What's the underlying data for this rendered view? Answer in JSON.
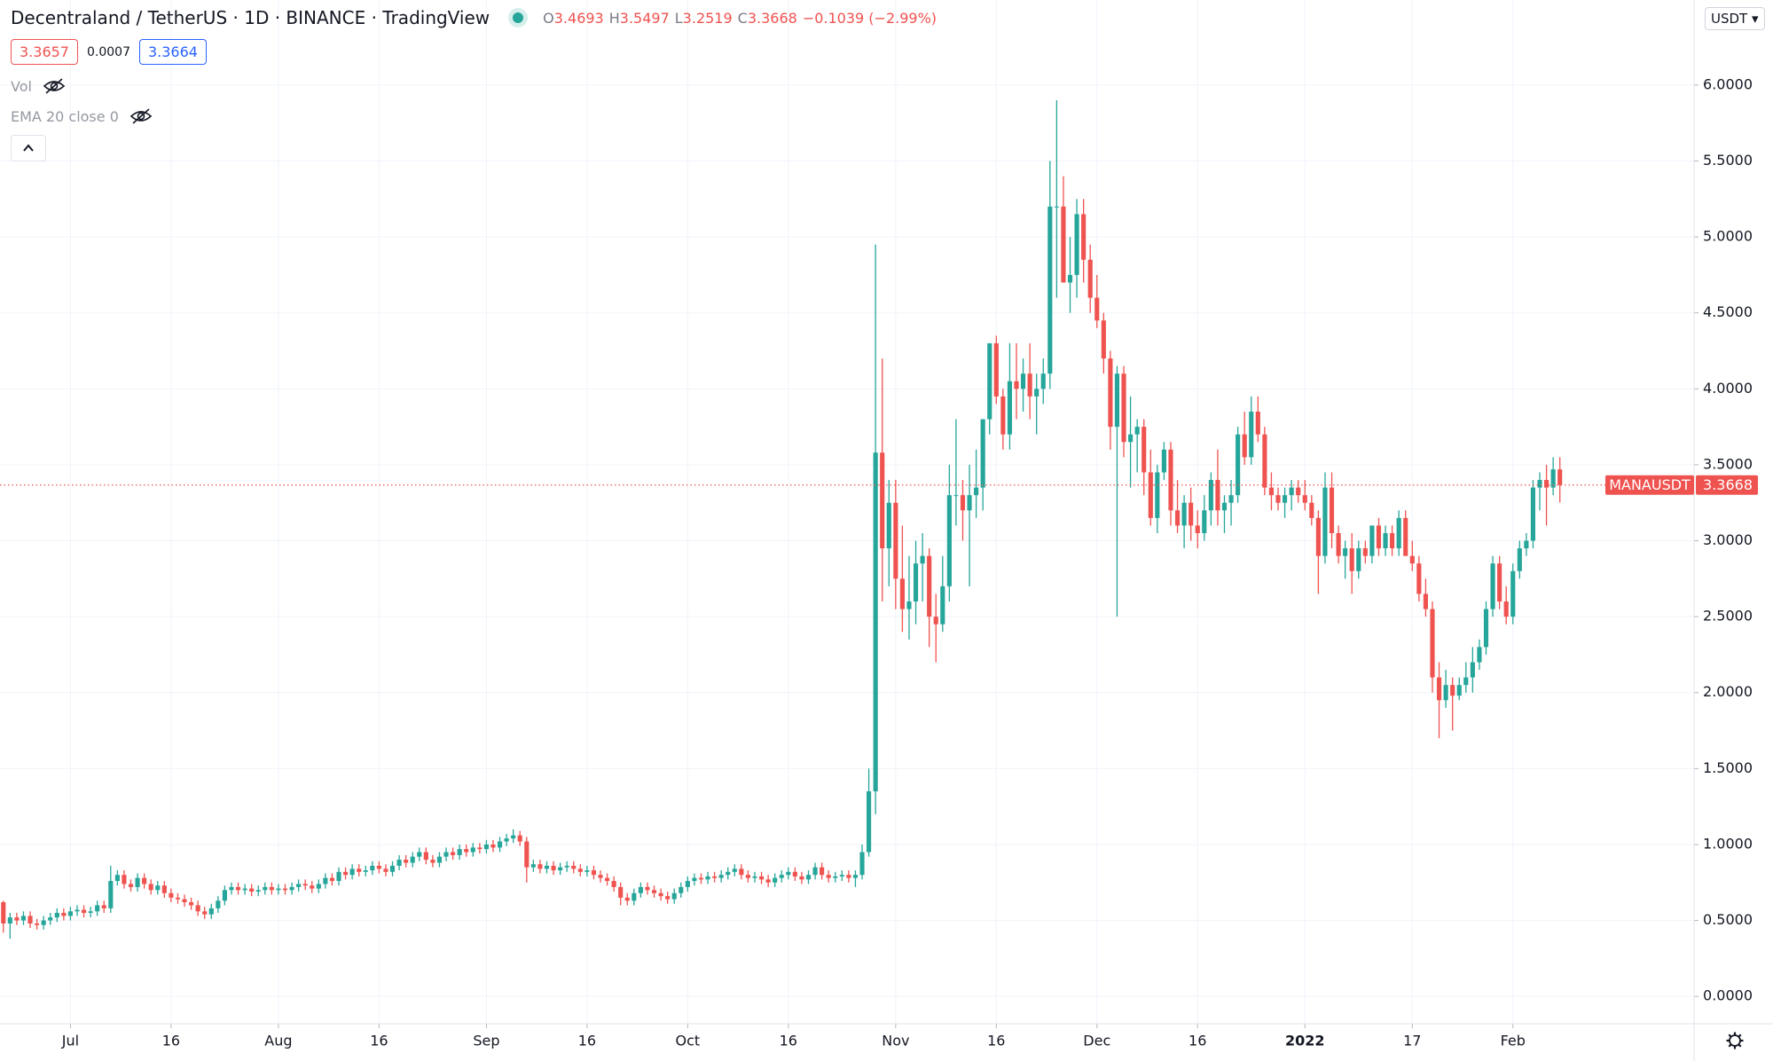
{
  "header": {
    "title": "Decentraland / TetherUS · 1D · BINANCE · TradingView",
    "ohlc": [
      {
        "label": "O",
        "value": "3.4693"
      },
      {
        "label": "H",
        "value": "3.5497"
      },
      {
        "label": "L",
        "value": "3.2519"
      },
      {
        "label": "C",
        "value": "3.3668"
      }
    ],
    "change": "−0.1039 (−2.99%)",
    "sell": "3.3657",
    "spread": "0.0007",
    "buy": "3.3664",
    "indicators": [
      "Vol",
      "EMA 20 close 0"
    ],
    "currency": "USDT"
  },
  "chart_data": {
    "type": "candlestick",
    "up_color": "#26a69a",
    "down_color": "#ef5350",
    "grid": true,
    "xlim": [
      -0.5,
      252
    ],
    "ylim": [
      -0.18,
      6.56
    ],
    "xticks": [
      {
        "value": 10,
        "label": "Jul"
      },
      {
        "value": 25,
        "label": "16"
      },
      {
        "value": 41,
        "label": "Aug"
      },
      {
        "value": 56,
        "label": "16"
      },
      {
        "value": 72,
        "label": "Sep"
      },
      {
        "value": 87,
        "label": "16"
      },
      {
        "value": 102,
        "label": "Oct"
      },
      {
        "value": 117,
        "label": "16"
      },
      {
        "value": 133,
        "label": "Nov"
      },
      {
        "value": 148,
        "label": "16"
      },
      {
        "value": 163,
        "label": "Dec"
      },
      {
        "value": 178,
        "label": "16"
      },
      {
        "value": 194,
        "label": "2022"
      },
      {
        "value": 210,
        "label": "17"
      },
      {
        "value": 225,
        "label": "Feb"
      }
    ],
    "yticks": [
      {
        "value": 0,
        "label": "0.0000"
      },
      {
        "value": 0.5,
        "label": "0.5000"
      },
      {
        "value": 1,
        "label": "1.0000"
      },
      {
        "value": 1.5,
        "label": "1.5000"
      },
      {
        "value": 2,
        "label": "2.0000"
      },
      {
        "value": 2.5,
        "label": "2.5000"
      },
      {
        "value": 3,
        "label": "3.0000"
      },
      {
        "value": 3.5,
        "label": "3.5000"
      },
      {
        "value": 4,
        "label": "4.0000"
      },
      {
        "value": 4.5,
        "label": "4.5000"
      },
      {
        "value": 5,
        "label": "5.0000"
      },
      {
        "value": 5.5,
        "label": "5.5000"
      },
      {
        "value": 6,
        "label": "6.0000"
      }
    ],
    "last_price": {
      "name": "MANAUSDT",
      "value": 3.3668
    },
    "candles": [
      [
        0.62,
        0.63,
        0.42,
        0.48
      ],
      [
        0.48,
        0.55,
        0.38,
        0.52
      ],
      [
        0.52,
        0.55,
        0.47,
        0.5
      ],
      [
        0.5,
        0.56,
        0.47,
        0.53
      ],
      [
        0.53,
        0.56,
        0.45,
        0.48
      ],
      [
        0.48,
        0.51,
        0.44,
        0.47
      ],
      [
        0.47,
        0.53,
        0.44,
        0.5
      ],
      [
        0.5,
        0.55,
        0.47,
        0.52
      ],
      [
        0.52,
        0.58,
        0.49,
        0.55
      ],
      [
        0.55,
        0.58,
        0.5,
        0.53
      ],
      [
        0.53,
        0.59,
        0.5,
        0.56
      ],
      [
        0.56,
        0.6,
        0.53,
        0.57
      ],
      [
        0.57,
        0.6,
        0.52,
        0.55
      ],
      [
        0.55,
        0.59,
        0.52,
        0.56
      ],
      [
        0.56,
        0.63,
        0.53,
        0.6
      ],
      [
        0.6,
        0.63,
        0.55,
        0.58
      ],
      [
        0.58,
        0.86,
        0.55,
        0.76
      ],
      [
        0.76,
        0.83,
        0.73,
        0.8
      ],
      [
        0.8,
        0.83,
        0.71,
        0.74
      ],
      [
        0.74,
        0.77,
        0.69,
        0.72
      ],
      [
        0.72,
        0.81,
        0.69,
        0.78
      ],
      [
        0.78,
        0.81,
        0.71,
        0.74
      ],
      [
        0.74,
        0.77,
        0.67,
        0.7
      ],
      [
        0.7,
        0.76,
        0.67,
        0.73
      ],
      [
        0.73,
        0.76,
        0.65,
        0.68
      ],
      [
        0.68,
        0.71,
        0.62,
        0.65
      ],
      [
        0.65,
        0.68,
        0.61,
        0.64
      ],
      [
        0.64,
        0.67,
        0.59,
        0.62
      ],
      [
        0.62,
        0.65,
        0.57,
        0.6
      ],
      [
        0.6,
        0.63,
        0.53,
        0.56
      ],
      [
        0.56,
        0.59,
        0.51,
        0.54
      ],
      [
        0.54,
        0.61,
        0.51,
        0.58
      ],
      [
        0.58,
        0.66,
        0.55,
        0.63
      ],
      [
        0.63,
        0.73,
        0.6,
        0.7
      ],
      [
        0.7,
        0.75,
        0.67,
        0.72
      ],
      [
        0.72,
        0.75,
        0.67,
        0.7
      ],
      [
        0.7,
        0.74,
        0.67,
        0.71
      ],
      [
        0.71,
        0.74,
        0.66,
        0.69
      ],
      [
        0.69,
        0.73,
        0.66,
        0.7
      ],
      [
        0.7,
        0.75,
        0.67,
        0.72
      ],
      [
        0.72,
        0.75,
        0.67,
        0.7
      ],
      [
        0.7,
        0.74,
        0.67,
        0.71
      ],
      [
        0.71,
        0.74,
        0.67,
        0.7
      ],
      [
        0.7,
        0.75,
        0.67,
        0.72
      ],
      [
        0.72,
        0.77,
        0.69,
        0.74
      ],
      [
        0.74,
        0.77,
        0.7,
        0.73
      ],
      [
        0.73,
        0.76,
        0.68,
        0.71
      ],
      [
        0.71,
        0.77,
        0.68,
        0.74
      ],
      [
        0.74,
        0.81,
        0.71,
        0.78
      ],
      [
        0.78,
        0.81,
        0.73,
        0.76
      ],
      [
        0.76,
        0.85,
        0.73,
        0.82
      ],
      [
        0.82,
        0.85,
        0.77,
        0.8
      ],
      [
        0.8,
        0.87,
        0.77,
        0.84
      ],
      [
        0.84,
        0.87,
        0.79,
        0.82
      ],
      [
        0.82,
        0.86,
        0.79,
        0.83
      ],
      [
        0.83,
        0.89,
        0.8,
        0.86
      ],
      [
        0.86,
        0.89,
        0.81,
        0.84
      ],
      [
        0.84,
        0.87,
        0.79,
        0.82
      ],
      [
        0.82,
        0.89,
        0.79,
        0.86
      ],
      [
        0.86,
        0.93,
        0.83,
        0.9
      ],
      [
        0.9,
        0.93,
        0.85,
        0.88
      ],
      [
        0.88,
        0.95,
        0.85,
        0.92
      ],
      [
        0.92,
        0.98,
        0.89,
        0.95
      ],
      [
        0.95,
        0.98,
        0.87,
        0.9
      ],
      [
        0.9,
        0.93,
        0.85,
        0.88
      ],
      [
        0.88,
        0.95,
        0.85,
        0.92
      ],
      [
        0.92,
        0.98,
        0.89,
        0.95
      ],
      [
        0.95,
        0.98,
        0.9,
        0.93
      ],
      [
        0.93,
        1.0,
        0.9,
        0.97
      ],
      [
        0.97,
        1.0,
        0.92,
        0.95
      ],
      [
        0.95,
        1.01,
        0.92,
        0.98
      ],
      [
        0.98,
        1.01,
        0.94,
        0.97
      ],
      [
        0.97,
        1.03,
        0.94,
        1.0
      ],
      [
        1.0,
        1.03,
        0.95,
        0.98
      ],
      [
        0.98,
        1.05,
        0.95,
        1.02
      ],
      [
        1.02,
        1.07,
        0.99,
        1.04
      ],
      [
        1.04,
        1.1,
        1.01,
        1.06
      ],
      [
        1.06,
        1.09,
        0.99,
        1.02
      ],
      [
        1.02,
        1.05,
        0.75,
        0.85
      ],
      [
        0.85,
        0.9,
        0.82,
        0.87
      ],
      [
        0.87,
        0.9,
        0.81,
        0.84
      ],
      [
        0.84,
        0.89,
        0.81,
        0.86
      ],
      [
        0.86,
        0.89,
        0.8,
        0.83
      ],
      [
        0.83,
        0.88,
        0.8,
        0.85
      ],
      [
        0.85,
        0.89,
        0.82,
        0.86
      ],
      [
        0.86,
        0.89,
        0.81,
        0.84
      ],
      [
        0.84,
        0.87,
        0.79,
        0.82
      ],
      [
        0.82,
        0.86,
        0.79,
        0.83
      ],
      [
        0.83,
        0.86,
        0.77,
        0.8
      ],
      [
        0.8,
        0.83,
        0.75,
        0.78
      ],
      [
        0.78,
        0.81,
        0.73,
        0.76
      ],
      [
        0.76,
        0.79,
        0.69,
        0.72
      ],
      [
        0.72,
        0.75,
        0.6,
        0.65
      ],
      [
        0.65,
        0.68,
        0.6,
        0.63
      ],
      [
        0.63,
        0.71,
        0.6,
        0.68
      ],
      [
        0.68,
        0.75,
        0.65,
        0.72
      ],
      [
        0.72,
        0.75,
        0.67,
        0.7
      ],
      [
        0.7,
        0.73,
        0.65,
        0.68
      ],
      [
        0.68,
        0.71,
        0.63,
        0.66
      ],
      [
        0.66,
        0.69,
        0.61,
        0.64
      ],
      [
        0.64,
        0.71,
        0.61,
        0.68
      ],
      [
        0.68,
        0.75,
        0.65,
        0.72
      ],
      [
        0.72,
        0.79,
        0.69,
        0.76
      ],
      [
        0.76,
        0.81,
        0.73,
        0.78
      ],
      [
        0.78,
        0.81,
        0.74,
        0.77
      ],
      [
        0.77,
        0.82,
        0.74,
        0.79
      ],
      [
        0.79,
        0.82,
        0.75,
        0.78
      ],
      [
        0.78,
        0.83,
        0.75,
        0.8
      ],
      [
        0.8,
        0.85,
        0.77,
        0.82
      ],
      [
        0.82,
        0.87,
        0.79,
        0.84
      ],
      [
        0.84,
        0.87,
        0.77,
        0.8
      ],
      [
        0.8,
        0.83,
        0.75,
        0.78
      ],
      [
        0.78,
        0.82,
        0.75,
        0.79
      ],
      [
        0.79,
        0.82,
        0.74,
        0.77
      ],
      [
        0.77,
        0.8,
        0.72,
        0.75
      ],
      [
        0.75,
        0.81,
        0.72,
        0.78
      ],
      [
        0.78,
        0.83,
        0.75,
        0.8
      ],
      [
        0.8,
        0.85,
        0.77,
        0.82
      ],
      [
        0.82,
        0.85,
        0.76,
        0.79
      ],
      [
        0.79,
        0.82,
        0.74,
        0.77
      ],
      [
        0.77,
        0.83,
        0.74,
        0.8
      ],
      [
        0.8,
        0.88,
        0.77,
        0.85
      ],
      [
        0.85,
        0.88,
        0.77,
        0.8
      ],
      [
        0.8,
        0.83,
        0.75,
        0.78
      ],
      [
        0.78,
        0.82,
        0.75,
        0.79
      ],
      [
        0.79,
        0.83,
        0.76,
        0.8
      ],
      [
        0.8,
        0.83,
        0.75,
        0.78
      ],
      [
        0.78,
        0.83,
        0.72,
        0.8
      ],
      [
        0.8,
        1.0,
        0.77,
        0.95
      ],
      [
        0.95,
        1.5,
        0.92,
        1.35
      ],
      [
        1.35,
        4.95,
        1.2,
        3.58
      ],
      [
        3.58,
        4.2,
        2.6,
        2.95
      ],
      [
        2.95,
        3.4,
        2.7,
        3.25
      ],
      [
        3.25,
        3.4,
        2.55,
        2.75
      ],
      [
        2.75,
        3.1,
        2.4,
        2.55
      ],
      [
        2.55,
        2.9,
        2.35,
        2.6
      ],
      [
        2.6,
        3.0,
        2.45,
        2.85
      ],
      [
        2.85,
        3.05,
        2.6,
        2.9
      ],
      [
        2.9,
        2.95,
        2.3,
        2.5
      ],
      [
        2.5,
        2.65,
        2.2,
        2.45
      ],
      [
        2.45,
        2.9,
        2.4,
        2.7
      ],
      [
        2.7,
        3.5,
        2.6,
        3.3
      ],
      [
        3.3,
        3.8,
        3.1,
        3.3
      ],
      [
        3.3,
        3.4,
        3.0,
        3.2
      ],
      [
        3.2,
        3.5,
        2.7,
        3.3
      ],
      [
        3.3,
        3.6,
        3.15,
        3.35
      ],
      [
        3.35,
        3.8,
        3.2,
        3.8
      ],
      [
        3.8,
        4.3,
        3.7,
        4.3
      ],
      [
        4.3,
        4.35,
        3.9,
        3.95
      ],
      [
        3.95,
        4.0,
        3.6,
        3.7
      ],
      [
        3.7,
        4.3,
        3.6,
        4.05
      ],
      [
        4.05,
        4.3,
        3.8,
        4.0
      ],
      [
        4.0,
        4.2,
        3.85,
        4.1
      ],
      [
        4.1,
        4.3,
        3.8,
        3.95
      ],
      [
        3.95,
        4.1,
        3.7,
        4.0
      ],
      [
        4.0,
        4.2,
        3.9,
        4.1
      ],
      [
        4.1,
        5.5,
        4.0,
        5.2
      ],
      [
        5.2,
        5.9,
        4.6,
        5.2
      ],
      [
        5.2,
        5.4,
        4.7,
        4.7
      ],
      [
        4.7,
        5.0,
        4.5,
        4.75
      ],
      [
        4.75,
        5.25,
        4.6,
        5.15
      ],
      [
        5.15,
        5.25,
        4.7,
        4.85
      ],
      [
        4.85,
        4.95,
        4.5,
        4.6
      ],
      [
        4.6,
        4.75,
        4.4,
        4.45
      ],
      [
        4.45,
        4.5,
        4.1,
        4.2
      ],
      [
        4.2,
        4.25,
        3.6,
        3.75
      ],
      [
        3.75,
        4.15,
        2.5,
        4.1
      ],
      [
        4.1,
        4.15,
        3.55,
        3.65
      ],
      [
        3.65,
        3.95,
        3.35,
        3.7
      ],
      [
        3.7,
        3.8,
        3.45,
        3.75
      ],
      [
        3.75,
        3.8,
        3.3,
        3.45
      ],
      [
        3.45,
        3.6,
        3.1,
        3.15
      ],
      [
        3.15,
        3.5,
        3.05,
        3.45
      ],
      [
        3.45,
        3.65,
        3.4,
        3.6
      ],
      [
        3.6,
        3.65,
        3.1,
        3.2
      ],
      [
        3.2,
        3.4,
        3.05,
        3.1
      ],
      [
        3.1,
        3.3,
        2.95,
        3.25
      ],
      [
        3.25,
        3.35,
        3.0,
        3.1
      ],
      [
        3.1,
        3.2,
        2.95,
        3.05
      ],
      [
        3.05,
        3.3,
        3.0,
        3.2
      ],
      [
        3.2,
        3.45,
        3.1,
        3.4
      ],
      [
        3.4,
        3.6,
        3.1,
        3.2
      ],
      [
        3.2,
        3.3,
        3.05,
        3.25
      ],
      [
        3.25,
        3.4,
        3.1,
        3.3
      ],
      [
        3.3,
        3.75,
        3.25,
        3.7
      ],
      [
        3.7,
        3.85,
        3.5,
        3.55
      ],
      [
        3.55,
        3.95,
        3.5,
        3.85
      ],
      [
        3.85,
        3.95,
        3.65,
        3.7
      ],
      [
        3.7,
        3.75,
        3.3,
        3.35
      ],
      [
        3.35,
        3.45,
        3.2,
        3.3
      ],
      [
        3.3,
        3.35,
        3.2,
        3.25
      ],
      [
        3.25,
        3.35,
        3.15,
        3.3
      ],
      [
        3.3,
        3.4,
        3.2,
        3.35
      ],
      [
        3.35,
        3.4,
        3.25,
        3.3
      ],
      [
        3.3,
        3.4,
        3.2,
        3.25
      ],
      [
        3.25,
        3.3,
        3.1,
        3.15
      ],
      [
        3.15,
        3.2,
        2.65,
        2.9
      ],
      [
        2.9,
        3.45,
        2.85,
        3.35
      ],
      [
        3.35,
        3.45,
        2.95,
        3.05
      ],
      [
        3.05,
        3.1,
        2.85,
        2.9
      ],
      [
        2.9,
        3.0,
        2.75,
        2.95
      ],
      [
        2.95,
        3.05,
        2.65,
        2.8
      ],
      [
        2.8,
        3.0,
        2.75,
        2.95
      ],
      [
        2.95,
        3.0,
        2.85,
        2.9
      ],
      [
        2.9,
        3.1,
        2.85,
        3.1
      ],
      [
        3.1,
        3.15,
        2.9,
        2.95
      ],
      [
        2.95,
        3.1,
        2.9,
        3.05
      ],
      [
        3.05,
        3.1,
        2.9,
        2.95
      ],
      [
        2.95,
        3.2,
        2.9,
        3.15
      ],
      [
        3.15,
        3.2,
        2.9,
        2.9
      ],
      [
        2.9,
        3.0,
        2.8,
        2.85
      ],
      [
        2.85,
        2.9,
        2.6,
        2.65
      ],
      [
        2.65,
        2.75,
        2.5,
        2.55
      ],
      [
        2.55,
        2.6,
        2.0,
        2.1
      ],
      [
        2.1,
        2.2,
        1.7,
        1.95
      ],
      [
        1.95,
        2.15,
        1.9,
        2.05
      ],
      [
        2.05,
        2.1,
        1.75,
        1.98
      ],
      [
        1.98,
        2.1,
        1.95,
        2.05
      ],
      [
        2.05,
        2.2,
        2.0,
        2.1
      ],
      [
        2.1,
        2.3,
        2.0,
        2.2
      ],
      [
        2.2,
        2.35,
        2.15,
        2.3
      ],
      [
        2.3,
        2.6,
        2.25,
        2.55
      ],
      [
        2.55,
        2.9,
        2.5,
        2.85
      ],
      [
        2.85,
        2.9,
        2.55,
        2.6
      ],
      [
        2.6,
        2.7,
        2.45,
        2.5
      ],
      [
        2.5,
        2.85,
        2.45,
        2.8
      ],
      [
        2.8,
        3.0,
        2.75,
        2.95
      ],
      [
        2.95,
        3.05,
        2.9,
        3.0
      ],
      [
        3.0,
        3.4,
        2.95,
        3.35
      ],
      [
        3.35,
        3.45,
        3.2,
        3.4
      ],
      [
        3.4,
        3.5,
        3.1,
        3.35
      ],
      [
        3.35,
        3.55,
        3.3,
        3.47
      ],
      [
        3.4693,
        3.5497,
        3.2519,
        3.3668
      ]
    ]
  }
}
